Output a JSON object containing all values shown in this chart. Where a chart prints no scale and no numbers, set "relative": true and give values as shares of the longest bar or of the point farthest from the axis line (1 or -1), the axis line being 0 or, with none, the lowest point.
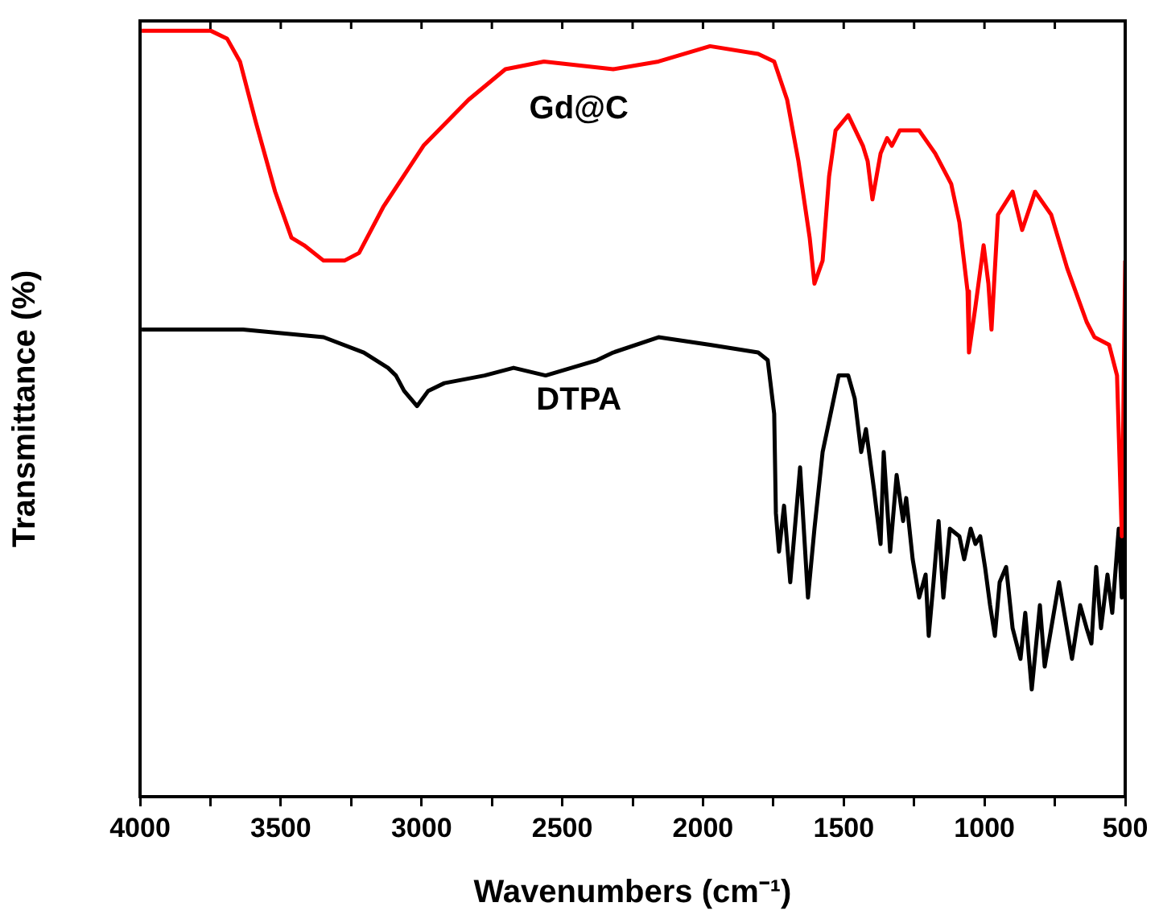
{
  "chart_data": {
    "type": "line",
    "relative": true,
    "xlabel": "Wavenumbers (cm⁻¹)",
    "ylabel": "Transmittance (%)",
    "xlim": [
      4000,
      500
    ],
    "xticks": [
      4000,
      {
        "value": 3750,
        "label": null
      },
      3500,
      {
        "value": 3250,
        "label": null
      },
      3000,
      {
        "value": 2750,
        "label": null
      },
      2500,
      {
        "value": 2250,
        "label": null
      },
      2000,
      {
        "value": 1750,
        "label": null
      },
      1500,
      {
        "value": 1250,
        "label": null
      },
      1000,
      {
        "value": 750,
        "label": null
      },
      500
    ],
    "legend": false,
    "grid": false,
    "series": [
      {
        "name": "Gd@C",
        "color": "#ff0000",
        "x": [
          3994,
          3748,
          3691,
          3645,
          3588,
          3520,
          3462,
          3417,
          3348,
          3274,
          3222,
          3136,
          2993,
          2833,
          2702,
          2565,
          2319,
          2158,
          1975,
          1804,
          1747,
          1701,
          1661,
          1621,
          1604,
          1575,
          1552,
          1529,
          1484,
          1432,
          1415,
          1398,
          1369,
          1346,
          1329,
          1301,
          1232,
          1175,
          1118,
          1089,
          1060,
          1055,
          1032,
          1003,
          986,
          975,
          952,
          900,
          866,
          820,
          763,
          706,
          637,
          609,
          557,
          529,
          512,
          500
        ],
        "values": [
          1.0,
          1.0,
          0.99,
          0.96,
          0.88,
          0.79,
          0.73,
          0.72,
          0.7,
          0.7,
          0.71,
          0.77,
          0.85,
          0.91,
          0.95,
          0.96,
          0.95,
          0.96,
          0.98,
          0.97,
          0.96,
          0.91,
          0.83,
          0.73,
          0.67,
          0.7,
          0.81,
          0.87,
          0.89,
          0.85,
          0.83,
          0.78,
          0.84,
          0.86,
          0.85,
          0.87,
          0.87,
          0.84,
          0.8,
          0.75,
          0.66,
          0.58,
          0.64,
          0.72,
          0.67,
          0.61,
          0.76,
          0.79,
          0.74,
          0.79,
          0.76,
          0.69,
          0.62,
          0.6,
          0.59,
          0.55,
          0.34,
          0.7
        ]
      },
      {
        "name": "DTPA",
        "color": "#000000",
        "x": [
          3994,
          3634,
          3348,
          3205,
          3119,
          3091,
          3062,
          3016,
          2976,
          2919,
          2776,
          2673,
          2559,
          2376,
          2319,
          2158,
          1975,
          1804,
          1770,
          1747,
          1741,
          1730,
          1712,
          1690,
          1655,
          1627,
          1604,
          1575,
          1518,
          1484,
          1461,
          1438,
          1421,
          1392,
          1369,
          1358,
          1335,
          1312,
          1289,
          1278,
          1255,
          1232,
          1209,
          1198,
          1181,
          1163,
          1146,
          1123,
          1089,
          1072,
          1049,
          1032,
          1015,
          998,
          980,
          963,
          946,
          923,
          900,
          872,
          855,
          832,
          803,
          786,
          735,
          712,
          689,
          660,
          637,
          620,
          603,
          586,
          563,
          546,
          523,
          512,
          500
        ],
        "values": [
          0.61,
          0.61,
          0.6,
          0.58,
          0.56,
          0.55,
          0.53,
          0.51,
          0.53,
          0.54,
          0.55,
          0.56,
          0.55,
          0.57,
          0.58,
          0.6,
          0.59,
          0.58,
          0.57,
          0.5,
          0.37,
          0.32,
          0.38,
          0.28,
          0.43,
          0.26,
          0.35,
          0.45,
          0.55,
          0.55,
          0.52,
          0.45,
          0.48,
          0.4,
          0.33,
          0.45,
          0.32,
          0.42,
          0.36,
          0.39,
          0.31,
          0.26,
          0.29,
          0.21,
          0.28,
          0.36,
          0.26,
          0.35,
          0.34,
          0.31,
          0.35,
          0.33,
          0.34,
          0.3,
          0.25,
          0.21,
          0.28,
          0.3,
          0.22,
          0.18,
          0.24,
          0.14,
          0.25,
          0.17,
          0.28,
          0.23,
          0.18,
          0.25,
          0.22,
          0.2,
          0.3,
          0.22,
          0.29,
          0.24,
          0.35,
          0.26,
          0.45
        ]
      }
    ]
  }
}
